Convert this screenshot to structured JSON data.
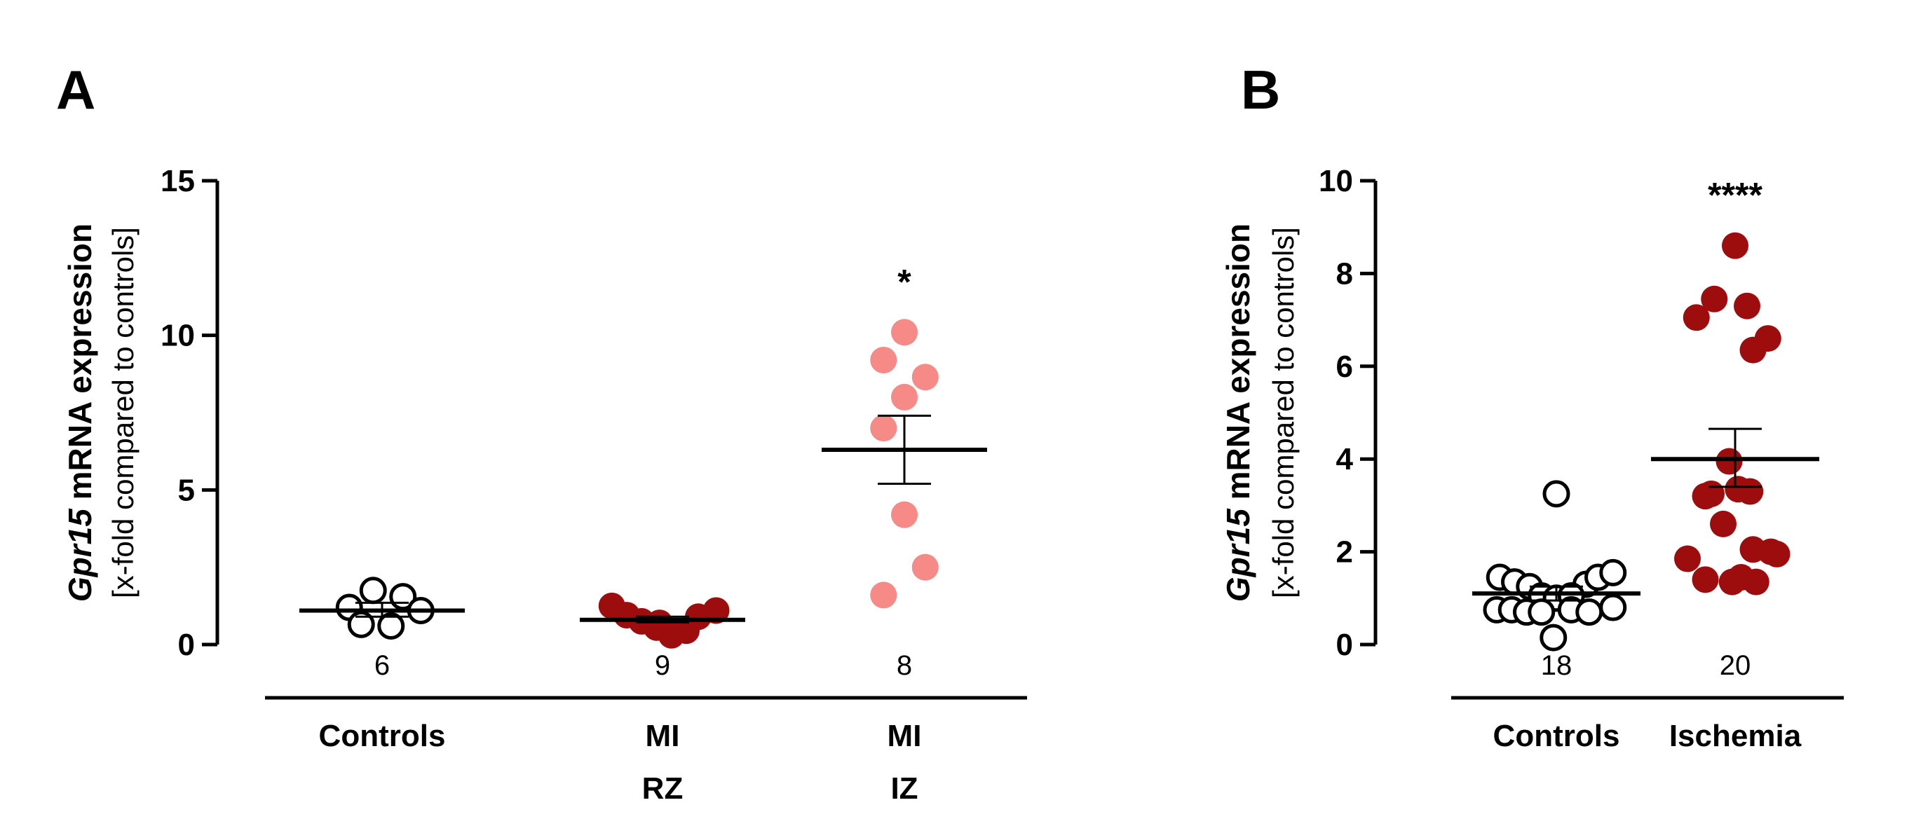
{
  "chart_data": [
    {
      "panel": "A",
      "type": "scatter",
      "ylabel_gene": "Gpr15",
      "ylabel_main": " mRNA expression",
      "ylabel_sub": "[x-fold compared to controls]",
      "ylim": [
        0,
        15
      ],
      "yticks": [
        "0",
        "5",
        "10",
        "15"
      ],
      "groups": [
        {
          "name": "Controls",
          "label_lines": [
            "Controls"
          ],
          "n": "6",
          "style": "open",
          "color": "#000000",
          "points": [
            {
              "x": -0.55,
              "y": 1.2
            },
            {
              "x": -0.15,
              "y": 1.75
            },
            {
              "x": 0.35,
              "y": 1.55
            },
            {
              "x": 0.65,
              "y": 1.1
            },
            {
              "x": -0.35,
              "y": 0.65
            },
            {
              "x": 0.15,
              "y": 0.6
            }
          ],
          "mean": 1.1,
          "sem_low": 0.9,
          "sem_high": 1.35,
          "significance": ""
        },
        {
          "name": "MI RZ",
          "label_lines": [
            "MI",
            "RZ"
          ],
          "n": "9",
          "style": "filled",
          "color": "#9e0d0d",
          "points": [
            {
              "x": -0.85,
              "y": 1.25
            },
            {
              "x": -0.6,
              "y": 0.95
            },
            {
              "x": -0.35,
              "y": 0.75
            },
            {
              "x": -0.1,
              "y": 0.55
            },
            {
              "x": 0.15,
              "y": 0.3
            },
            {
              "x": 0.4,
              "y": 0.45
            },
            {
              "x": 0.6,
              "y": 0.9
            },
            {
              "x": 0.9,
              "y": 1.1
            },
            {
              "x": -0.05,
              "y": 0.7
            }
          ],
          "mean": 0.8,
          "sem_low": 0.72,
          "sem_high": 0.9,
          "significance": ""
        },
        {
          "name": "MI IZ",
          "label_lines": [
            "MI",
            "IZ"
          ],
          "n": "8",
          "style": "filled",
          "color": "#f58a86",
          "points": [
            {
              "x": 0.0,
              "y": 10.1
            },
            {
              "x": -0.35,
              "y": 9.2
            },
            {
              "x": 0.35,
              "y": 8.65
            },
            {
              "x": -0.35,
              "y": 7.0
            },
            {
              "x": 0.0,
              "y": 4.2
            },
            {
              "x": 0.35,
              "y": 2.5
            },
            {
              "x": -0.35,
              "y": 1.6
            },
            {
              "x": 0.0,
              "y": 8.0
            }
          ],
          "mean": 6.3,
          "sem_low": 5.2,
          "sem_high": 7.4,
          "significance": "*"
        }
      ]
    },
    {
      "panel": "B",
      "type": "scatter",
      "ylabel_gene": "Gpr15",
      "ylabel_main": " mRNA expression",
      "ylabel_sub": "[x-fold compared to controls]",
      "ylim": [
        0,
        10
      ],
      "yticks": [
        "0",
        "2",
        "4",
        "6",
        "8",
        "10"
      ],
      "groups": [
        {
          "name": "Controls",
          "label_lines": [
            "Controls"
          ],
          "n": "18",
          "style": "open",
          "color": "#000000",
          "points": [
            {
              "x": 0.0,
              "y": 3.25
            },
            {
              "x": -0.95,
              "y": 1.45
            },
            {
              "x": -0.7,
              "y": 1.35
            },
            {
              "x": -0.45,
              "y": 1.25
            },
            {
              "x": 0.5,
              "y": 1.3
            },
            {
              "x": 0.7,
              "y": 1.45
            },
            {
              "x": 0.95,
              "y": 1.55
            },
            {
              "x": -0.25,
              "y": 1.05
            },
            {
              "x": 0.0,
              "y": 1.0
            },
            {
              "x": 0.25,
              "y": 1.05
            },
            {
              "x": -1.0,
              "y": 0.75
            },
            {
              "x": -0.75,
              "y": 0.75
            },
            {
              "x": -0.5,
              "y": 0.7
            },
            {
              "x": -0.25,
              "y": 0.7
            },
            {
              "x": 0.25,
              "y": 0.75
            },
            {
              "x": 0.55,
              "y": 0.7
            },
            {
              "x": 0.95,
              "y": 0.8
            },
            {
              "x": -0.05,
              "y": 0.15
            }
          ],
          "mean": 1.1,
          "sem_low": 0.95,
          "sem_high": 1.25,
          "significance": ""
        },
        {
          "name": "Ischemia",
          "label_lines": [
            "Ischemia"
          ],
          "n": "20",
          "style": "filled",
          "color": "#9e0d0d",
          "points": [
            {
              "x": 0.0,
              "y": 8.6
            },
            {
              "x": -0.35,
              "y": 7.45
            },
            {
              "x": 0.2,
              "y": 7.3
            },
            {
              "x": -0.65,
              "y": 7.05
            },
            {
              "x": 0.55,
              "y": 6.6
            },
            {
              "x": 0.3,
              "y": 6.35
            },
            {
              "x": -0.1,
              "y": 3.95
            },
            {
              "x": -0.4,
              "y": 3.25
            },
            {
              "x": 0.25,
              "y": 3.3
            },
            {
              "x": -0.2,
              "y": 2.6
            },
            {
              "x": 0.3,
              "y": 2.05
            },
            {
              "x": -0.8,
              "y": 1.85
            },
            {
              "x": 0.7,
              "y": 1.95
            },
            {
              "x": -0.5,
              "y": 1.4
            },
            {
              "x": -0.05,
              "y": 1.35
            },
            {
              "x": 0.35,
              "y": 1.35
            },
            {
              "x": 0.05,
              "y": 3.35
            },
            {
              "x": -0.5,
              "y": 3.2
            },
            {
              "x": 0.6,
              "y": 2.0
            },
            {
              "x": 0.1,
              "y": 1.45
            }
          ],
          "mean": 4.0,
          "sem_low": 3.4,
          "sem_high": 4.65,
          "significance": "****"
        }
      ]
    }
  ]
}
